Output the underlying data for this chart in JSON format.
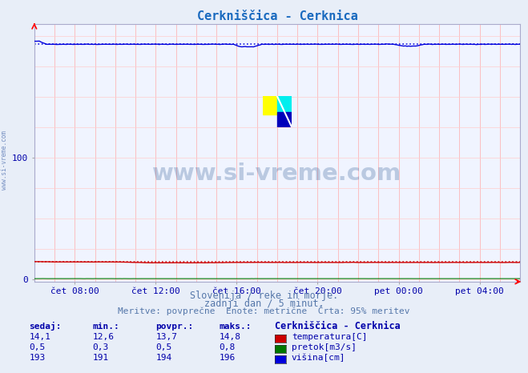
{
  "title": "Cerkniščica - Cerknica",
  "title_color": "#1a6abf",
  "bg_color": "#e8eef8",
  "plot_bg_color": "#f0f4ff",
  "grid_color_v": "#ffaaaa",
  "grid_color_h": "#ffcccc",
  "xlim": [
    0,
    288
  ],
  "ylim": [
    -2,
    210
  ],
  "yticks": [
    0,
    100
  ],
  "xtick_labels": [
    "čet 08:00",
    "čet 12:00",
    "čet 16:00",
    "čet 20:00",
    "pet 00:00",
    "pet 04:00"
  ],
  "xtick_positions": [
    24,
    72,
    120,
    168,
    216,
    264
  ],
  "temperatura_color": "#cc0000",
  "pretok_color": "#007700",
  "visina_color": "#0000dd",
  "watermark_text": "www.si-vreme.com",
  "watermark_color": "#1a4a8a",
  "watermark_alpha": 0.25,
  "subtitle1": "Slovenija / reke in morje.",
  "subtitle2": "zadnji dan / 5 minut.",
  "subtitle3": "Meritve: povprečne  Enote: metrične  Črta: 95% meritev",
  "subtitle_color": "#5577aa",
  "stats_color": "#0000aa",
  "legend_station": "Cerkniščica - Cerknica",
  "stats_data": [
    [
      "14,1",
      "12,6",
      "13,7",
      "14,8"
    ],
    [
      "0,5",
      "0,3",
      "0,5",
      "0,8"
    ],
    [
      "193",
      "191",
      "194",
      "196"
    ]
  ],
  "legend_labels": [
    "temperatura[C]",
    "pretok[m3/s]",
    "višina[cm]"
  ],
  "legend_colors": [
    "#cc0000",
    "#007700",
    "#0000dd"
  ],
  "n_points": 289
}
